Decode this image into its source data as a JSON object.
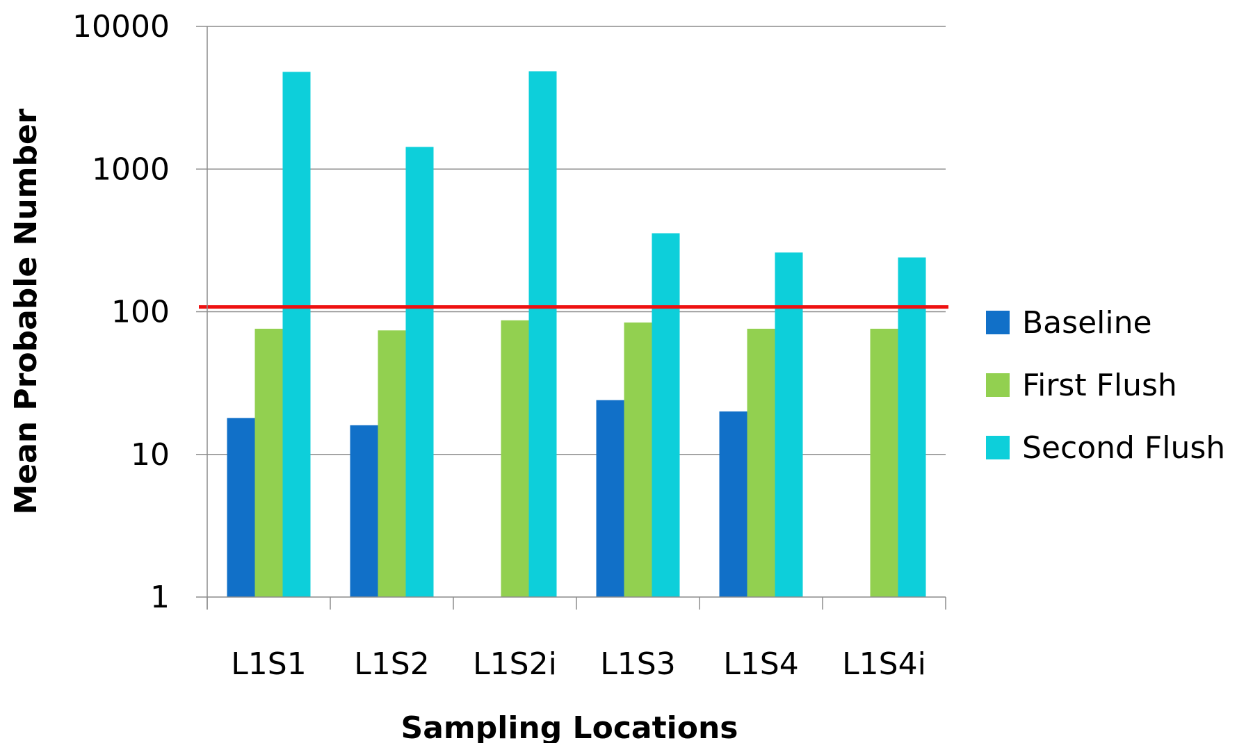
{
  "chart_data": {
    "type": "bar",
    "title": "",
    "xlabel": "Sampling Locations",
    "ylabel": "Mean Probable Number",
    "yscale": "log",
    "ylim": [
      1,
      10000
    ],
    "yticks": [
      1,
      10,
      100,
      1000,
      10000
    ],
    "ytick_labels": [
      "1",
      "10",
      "100",
      "1000",
      "10000"
    ],
    "grid": true,
    "legend_position": "right",
    "categories": [
      "L1S1",
      "L1S2",
      "L1S2i",
      "L1S3",
      "L1S4",
      "L1S4i"
    ],
    "series": [
      {
        "name": "Baseline",
        "color": "#1170C8",
        "values": [
          18,
          16,
          null,
          24,
          20,
          null
        ]
      },
      {
        "name": "First Flush",
        "color": "#92D050",
        "values": [
          76,
          74,
          87,
          84,
          76,
          76
        ]
      },
      {
        "name": "Second Flush",
        "color": "#0DCFDA",
        "values": [
          4800,
          1430,
          4850,
          355,
          260,
          240
        ]
      }
    ],
    "reference_line": {
      "value": 108,
      "color": "#EE1111"
    }
  }
}
